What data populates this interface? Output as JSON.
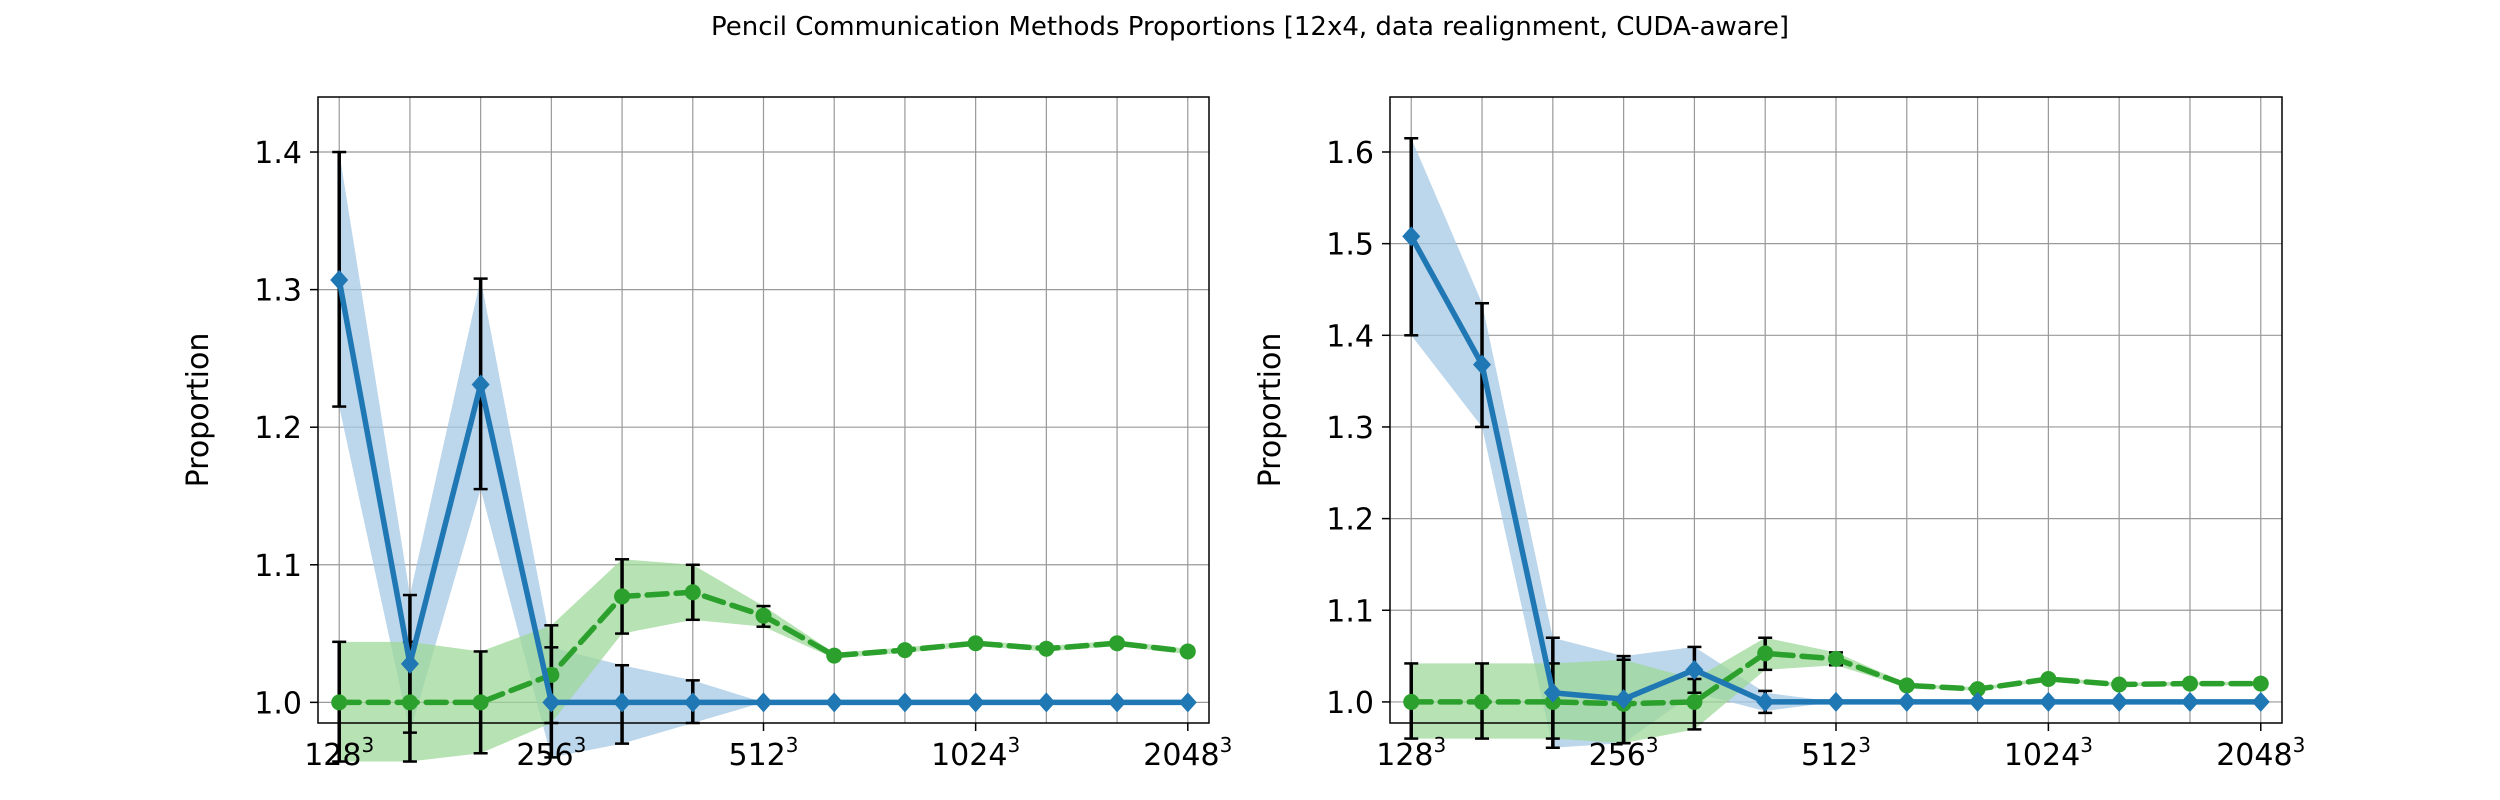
{
  "figure": {
    "title": "Pencil Communication Methods Proportions [12x4, data realignment, CUDA-aware]"
  },
  "colors": {
    "blue": "#1f77b4",
    "blue_band": "#a6c8e4",
    "green": "#2ca02c",
    "green_band": "#9fd89a",
    "grid": "#999999",
    "errorbar": "#000000"
  },
  "chart_data": [
    {
      "type": "line",
      "ylabel": "Proportion",
      "xlabel": "",
      "x_tick_labels": [
        {
          "base": "128",
          "exp": "3",
          "x": 0
        },
        {
          "base": "256",
          "exp": "3",
          "x": 3
        },
        {
          "base": "512",
          "exp": "3",
          "x": 6
        },
        {
          "base": "1024",
          "exp": "3",
          "x": 9
        },
        {
          "base": "2048",
          "exp": "3",
          "x": 12
        }
      ],
      "y_ticks": [
        1.0,
        1.1,
        1.2,
        1.3,
        1.4
      ],
      "ylim": [
        0.985,
        1.44
      ],
      "xlim": [
        -0.3,
        12.3
      ],
      "grid": true,
      "x": [
        0,
        1,
        2,
        3,
        4,
        5,
        6,
        7,
        8,
        9,
        10,
        11,
        12
      ],
      "series": [
        {
          "color_key": "blue",
          "marker": "diamond",
          "linestyle": "solid",
          "values": [
            1.307,
            1.028,
            1.231,
            1.0,
            1.0,
            1.0,
            1.0,
            1.0,
            1.0,
            1.0,
            1.0,
            1.0,
            1.0
          ],
          "band_low": [
            1.215,
            0.978,
            1.155,
            0.96,
            0.97,
            0.985,
            1.0,
            1.0,
            1.0,
            1.0,
            1.0,
            1.0,
            1.0
          ],
          "band_high": [
            1.4,
            1.078,
            1.308,
            1.04,
            1.027,
            1.016,
            1.0,
            1.0,
            1.0,
            1.0,
            1.0,
            1.0,
            1.0
          ],
          "errorbars": [
            [
              1.215,
              1.4
            ],
            [
              0.978,
              1.078
            ],
            [
              1.155,
              1.308
            ],
            [
              0.96,
              1.04
            ],
            [
              0.97,
              1.027
            ],
            [
              0.985,
              1.016
            ]
          ]
        },
        {
          "color_key": "green",
          "marker": "circle",
          "linestyle": "dashed",
          "values": [
            1.0,
            1.0,
            1.0,
            1.02,
            1.077,
            1.08,
            1.063,
            1.034,
            1.038,
            1.043,
            1.039,
            1.043,
            1.037
          ],
          "band_low": [
            0.957,
            0.957,
            0.963,
            0.985,
            1.05,
            1.06,
            1.055,
            1.032,
            1.036,
            1.041,
            1.037,
            1.041,
            1.035
          ],
          "band_high": [
            1.044,
            1.044,
            1.037,
            1.056,
            1.104,
            1.1,
            1.07,
            1.036,
            1.04,
            1.045,
            1.041,
            1.045,
            1.039
          ],
          "errorbars": [
            [
              0.957,
              1.044
            ],
            [
              0.957,
              1.044
            ],
            [
              0.963,
              1.037
            ],
            [
              0.985,
              1.056
            ],
            [
              1.05,
              1.104
            ],
            [
              1.06,
              1.1
            ],
            [
              1.055,
              1.07
            ]
          ]
        }
      ]
    },
    {
      "type": "line",
      "ylabel": "Proportion",
      "xlabel": "",
      "x_tick_labels": [
        {
          "base": "128",
          "exp": "3",
          "x": 0
        },
        {
          "base": "256",
          "exp": "3",
          "x": 3
        },
        {
          "base": "512",
          "exp": "3",
          "x": 6
        },
        {
          "base": "1024",
          "exp": "3",
          "x": 9
        },
        {
          "base": "2048",
          "exp": "3",
          "x": 12
        }
      ],
      "y_ticks": [
        1.0,
        1.1,
        1.2,
        1.3,
        1.4,
        1.5,
        1.6
      ],
      "ylim": [
        0.977,
        1.66
      ],
      "xlim": [
        -0.3,
        12.3
      ],
      "grid": true,
      "x": [
        0,
        1,
        2,
        3,
        4,
        5,
        6,
        7,
        8,
        9,
        10,
        11,
        12
      ],
      "series": [
        {
          "color_key": "blue",
          "marker": "diamond",
          "linestyle": "solid",
          "values": [
            1.508,
            1.368,
            1.01,
            1.003,
            1.035,
            1.0,
            1.0,
            1.0,
            1.0,
            1.0,
            1.0,
            1.0,
            1.0
          ],
          "band_low": [
            1.4,
            1.3,
            0.95,
            0.955,
            1.01,
            0.99,
            1.0,
            1.0,
            1.0,
            1.0,
            1.0,
            1.0,
            1.0
          ],
          "band_high": [
            1.615,
            1.435,
            1.07,
            1.05,
            1.06,
            1.01,
            1.0,
            1.0,
            1.0,
            1.0,
            1.0,
            1.0,
            1.0
          ],
          "errorbars": [
            [
              1.4,
              1.615
            ],
            [
              1.3,
              1.435
            ],
            [
              0.95,
              1.07
            ],
            [
              0.955,
              1.05
            ],
            [
              1.01,
              1.06
            ],
            [
              0.988,
              1.012
            ]
          ]
        },
        {
          "color_key": "green",
          "marker": "circle",
          "linestyle": "dashed",
          "values": [
            1.0,
            1.0,
            1.0,
            0.998,
            1.0,
            1.053,
            1.047,
            1.018,
            1.014,
            1.025,
            1.019,
            1.02,
            1.02
          ],
          "band_low": [
            0.96,
            0.96,
            0.96,
            0.955,
            0.97,
            1.035,
            1.04,
            1.016,
            1.012,
            1.023,
            1.017,
            1.018,
            1.018
          ],
          "band_high": [
            1.042,
            1.042,
            1.042,
            1.046,
            1.025,
            1.07,
            1.054,
            1.02,
            1.016,
            1.027,
            1.021,
            1.022,
            1.022
          ],
          "errorbars": [
            [
              0.96,
              1.042
            ],
            [
              0.96,
              1.042
            ],
            [
              0.96,
              1.042
            ],
            [
              0.955,
              1.046
            ],
            [
              0.97,
              1.025
            ],
            [
              1.035,
              1.07
            ],
            [
              1.04,
              1.054
            ]
          ]
        }
      ]
    }
  ]
}
